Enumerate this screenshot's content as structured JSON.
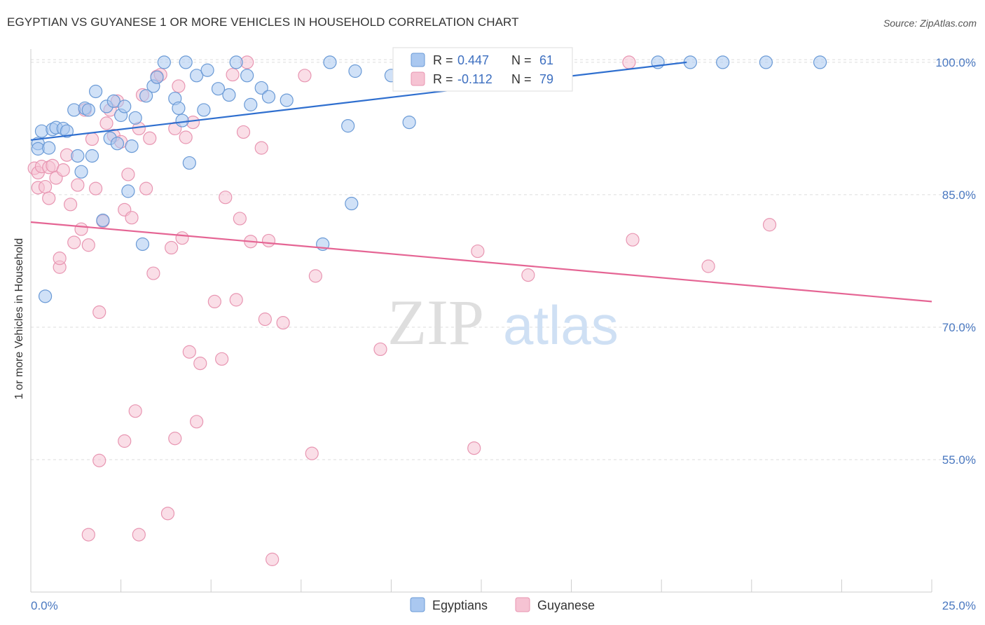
{
  "title": "EGYPTIAN VS GUYANESE 1 OR MORE VEHICLES IN HOUSEHOLD CORRELATION CHART",
  "source": "Source: ZipAtlas.com",
  "watermark": {
    "zip": "ZIP",
    "atlas": "atlas"
  },
  "colors": {
    "egyptians_fill": "#aac8f0",
    "egyptians_stroke": "#6a9ad6",
    "egyptians_line": "#2f6fcf",
    "guyanese_fill": "#f6c3d3",
    "guyanese_stroke": "#e896b2",
    "guyanese_line": "#e56594",
    "tick_label": "#4a78c0",
    "grid": "#dddddd"
  },
  "legend": {
    "r_label": "R =",
    "n_label": "N =",
    "rows": [
      {
        "series": "Egyptians",
        "r": "0.447",
        "n": "61"
      },
      {
        "series": "Guyanese",
        "r": "-0.112",
        "n": "79"
      }
    ]
  },
  "chart_data": {
    "type": "scatter",
    "title": "EGYPTIAN VS GUYANESE 1 OR MORE VEHICLES IN HOUSEHOLD CORRELATION CHART",
    "xlabel": "",
    "ylabel": "1 or more Vehicles in Household",
    "xlim": [
      0,
      25
    ],
    "ylim": [
      40,
      101.5
    ],
    "x_tick_labels": [
      "0.0%",
      "25.0%"
    ],
    "y_ticks": [
      55,
      70,
      85,
      100
    ],
    "y_tick_labels": [
      "55.0%",
      "70.0%",
      "85.0%",
      "100.0%"
    ],
    "grid": true,
    "legend_position": "bottom-center",
    "series": [
      {
        "name": "Egyptians",
        "trend": {
          "x": [
            0,
            18.2
          ],
          "y": [
            91.2,
            100.0
          ]
        },
        "points": [
          {
            "x": 0.2,
            "y": 90.8
          },
          {
            "x": 0.2,
            "y": 90.2
          },
          {
            "x": 0.3,
            "y": 92.2
          },
          {
            "x": 0.5,
            "y": 90.3
          },
          {
            "x": 0.6,
            "y": 92.4
          },
          {
            "x": 0.7,
            "y": 92.6
          },
          {
            "x": 0.9,
            "y": 92.5
          },
          {
            "x": 1.0,
            "y": 92.2
          },
          {
            "x": 1.2,
            "y": 94.6
          },
          {
            "x": 1.3,
            "y": 89.4
          },
          {
            "x": 1.4,
            "y": 87.6
          },
          {
            "x": 1.5,
            "y": 94.8
          },
          {
            "x": 1.6,
            "y": 94.6
          },
          {
            "x": 1.7,
            "y": 89.4
          },
          {
            "x": 1.8,
            "y": 96.7
          },
          {
            "x": 2.0,
            "y": 82.1
          },
          {
            "x": 2.1,
            "y": 95.0
          },
          {
            "x": 2.2,
            "y": 91.4
          },
          {
            "x": 2.3,
            "y": 95.6
          },
          {
            "x": 2.4,
            "y": 90.8
          },
          {
            "x": 2.5,
            "y": 94.0
          },
          {
            "x": 2.6,
            "y": 95.0
          },
          {
            "x": 2.7,
            "y": 85.4
          },
          {
            "x": 2.8,
            "y": 90.5
          },
          {
            "x": 2.9,
            "y": 93.7
          },
          {
            "x": 3.1,
            "y": 79.4
          },
          {
            "x": 3.2,
            "y": 96.2
          },
          {
            "x": 3.4,
            "y": 97.3
          },
          {
            "x": 3.5,
            "y": 98.3
          },
          {
            "x": 3.7,
            "y": 100.0
          },
          {
            "x": 4.0,
            "y": 95.9
          },
          {
            "x": 4.1,
            "y": 94.8
          },
          {
            "x": 4.2,
            "y": 93.4
          },
          {
            "x": 4.3,
            "y": 100.0
          },
          {
            "x": 4.4,
            "y": 88.6
          },
          {
            "x": 4.6,
            "y": 98.5
          },
          {
            "x": 4.8,
            "y": 94.6
          },
          {
            "x": 4.9,
            "y": 99.1
          },
          {
            "x": 5.2,
            "y": 97.0
          },
          {
            "x": 5.5,
            "y": 96.3
          },
          {
            "x": 5.7,
            "y": 100.0
          },
          {
            "x": 6.0,
            "y": 98.5
          },
          {
            "x": 6.1,
            "y": 95.2
          },
          {
            "x": 6.4,
            "y": 97.1
          },
          {
            "x": 6.6,
            "y": 96.1
          },
          {
            "x": 7.1,
            "y": 95.7
          },
          {
            "x": 8.1,
            "y": 79.4
          },
          {
            "x": 8.3,
            "y": 100.0
          },
          {
            "x": 8.8,
            "y": 92.8
          },
          {
            "x": 8.9,
            "y": 84.0
          },
          {
            "x": 9.0,
            "y": 99.0
          },
          {
            "x": 10.0,
            "y": 98.5
          },
          {
            "x": 10.5,
            "y": 93.2
          },
          {
            "x": 12.5,
            "y": 100.0
          },
          {
            "x": 13.5,
            "y": 100.0
          },
          {
            "x": 17.4,
            "y": 100.0
          },
          {
            "x": 18.3,
            "y": 100.0
          },
          {
            "x": 19.2,
            "y": 100.0
          },
          {
            "x": 20.4,
            "y": 100.0
          },
          {
            "x": 21.9,
            "y": 100.0
          },
          {
            "x": 0.4,
            "y": 73.5
          }
        ]
      },
      {
        "name": "Guyanese",
        "trend": {
          "x": [
            0,
            25
          ],
          "y": [
            81.9,
            72.9
          ]
        },
        "points": [
          {
            "x": 0.1,
            "y": 88.0
          },
          {
            "x": 0.2,
            "y": 87.5
          },
          {
            "x": 0.2,
            "y": 85.8
          },
          {
            "x": 0.3,
            "y": 88.2
          },
          {
            "x": 0.4,
            "y": 85.9
          },
          {
            "x": 0.5,
            "y": 88.1
          },
          {
            "x": 0.5,
            "y": 84.6
          },
          {
            "x": 0.6,
            "y": 88.3
          },
          {
            "x": 0.7,
            "y": 86.9
          },
          {
            "x": 0.8,
            "y": 76.8
          },
          {
            "x": 0.8,
            "y": 77.8
          },
          {
            "x": 0.9,
            "y": 87.8
          },
          {
            "x": 1.0,
            "y": 89.5
          },
          {
            "x": 1.1,
            "y": 83.9
          },
          {
            "x": 1.2,
            "y": 79.6
          },
          {
            "x": 1.3,
            "y": 86.1
          },
          {
            "x": 1.4,
            "y": 81.1
          },
          {
            "x": 1.5,
            "y": 94.6
          },
          {
            "x": 1.6,
            "y": 79.3
          },
          {
            "x": 1.6,
            "y": 46.5
          },
          {
            "x": 1.7,
            "y": 91.3
          },
          {
            "x": 1.8,
            "y": 85.7
          },
          {
            "x": 1.9,
            "y": 71.7
          },
          {
            "x": 2.0,
            "y": 82.0
          },
          {
            "x": 2.1,
            "y": 93.1
          },
          {
            "x": 2.2,
            "y": 94.6
          },
          {
            "x": 2.3,
            "y": 91.7
          },
          {
            "x": 2.4,
            "y": 95.6
          },
          {
            "x": 2.5,
            "y": 91.0
          },
          {
            "x": 2.6,
            "y": 83.3
          },
          {
            "x": 2.7,
            "y": 87.3
          },
          {
            "x": 2.8,
            "y": 82.4
          },
          {
            "x": 2.9,
            "y": 60.5
          },
          {
            "x": 3.0,
            "y": 92.5
          },
          {
            "x": 3.1,
            "y": 96.3
          },
          {
            "x": 3.2,
            "y": 85.7
          },
          {
            "x": 3.3,
            "y": 91.4
          },
          {
            "x": 3.4,
            "y": 76.1
          },
          {
            "x": 3.5,
            "y": 98.4
          },
          {
            "x": 3.6,
            "y": 98.6
          },
          {
            "x": 3.8,
            "y": 48.9
          },
          {
            "x": 3.9,
            "y": 79.0
          },
          {
            "x": 4.0,
            "y": 92.5
          },
          {
            "x": 4.1,
            "y": 97.3
          },
          {
            "x": 4.2,
            "y": 80.1
          },
          {
            "x": 4.3,
            "y": 91.5
          },
          {
            "x": 4.4,
            "y": 67.2
          },
          {
            "x": 4.5,
            "y": 93.2
          },
          {
            "x": 4.6,
            "y": 59.3
          },
          {
            "x": 4.7,
            "y": 65.9
          },
          {
            "x": 5.1,
            "y": 72.9
          },
          {
            "x": 5.3,
            "y": 66.4
          },
          {
            "x": 5.4,
            "y": 84.7
          },
          {
            "x": 5.6,
            "y": 98.6
          },
          {
            "x": 5.7,
            "y": 73.1
          },
          {
            "x": 5.8,
            "y": 82.3
          },
          {
            "x": 5.9,
            "y": 92.1
          },
          {
            "x": 6.1,
            "y": 79.7
          },
          {
            "x": 6.4,
            "y": 90.3
          },
          {
            "x": 6.5,
            "y": 70.9
          },
          {
            "x": 6.6,
            "y": 79.8
          },
          {
            "x": 6.7,
            "y": 43.7
          },
          {
            "x": 7.0,
            "y": 70.5
          },
          {
            "x": 7.6,
            "y": 98.5
          },
          {
            "x": 7.8,
            "y": 55.7
          },
          {
            "x": 7.9,
            "y": 75.8
          },
          {
            "x": 9.7,
            "y": 67.5
          },
          {
            "x": 12.3,
            "y": 56.3
          },
          {
            "x": 12.4,
            "y": 78.6
          },
          {
            "x": 13.8,
            "y": 75.9
          },
          {
            "x": 16.6,
            "y": 100.0
          },
          {
            "x": 16.7,
            "y": 79.9
          },
          {
            "x": 18.8,
            "y": 76.9
          },
          {
            "x": 20.5,
            "y": 81.6
          },
          {
            "x": 2.6,
            "y": 57.1
          },
          {
            "x": 1.9,
            "y": 54.9
          },
          {
            "x": 3.0,
            "y": 46.5
          },
          {
            "x": 4.0,
            "y": 57.4
          },
          {
            "x": 6.0,
            "y": 100.0
          }
        ]
      }
    ]
  }
}
